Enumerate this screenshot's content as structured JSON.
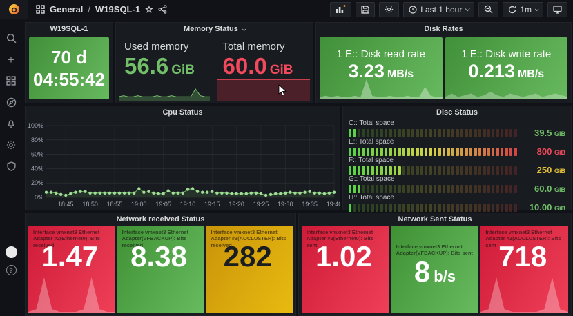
{
  "colors": {
    "green": "#56a64b",
    "red": "#e02f44",
    "orange": "#d9a70c",
    "green_text": "#73bf69",
    "red_text": "#f2495c",
    "yellow_text": "#e3c23a",
    "accent": "#ff8c1a"
  },
  "header": {
    "breadcrumb_section": "General",
    "breadcrumb_sep": "/",
    "breadcrumb_title": "W19SQL-1",
    "time_range_label": "Last 1 hour",
    "refresh_label": "1m"
  },
  "panels": {
    "uptime": {
      "title": "W19SQL-1",
      "days": "70 d",
      "time": "04:55:42"
    },
    "memory": {
      "title": "Memory Status",
      "used_label": "Used memory",
      "used_value": "56.6",
      "used_unit": "GiB",
      "total_label": "Total memory",
      "total_value": "60.0",
      "total_unit": "GiB",
      "used_spark": [
        3,
        4,
        3,
        3,
        4,
        3,
        3,
        3,
        4,
        3,
        3,
        4,
        3,
        3,
        3,
        3,
        10,
        4,
        3,
        3
      ]
    },
    "disk": {
      "title": "Disk Rates",
      "read_label": "1 E:: Disk read rate",
      "read_value": "3.23",
      "read_unit": "MB/s",
      "write_label": "1 E:: Disk write rate",
      "write_value": "0.213",
      "write_unit": "MB/s",
      "read_spark": [
        1,
        2,
        1,
        2,
        1,
        1,
        2,
        1,
        13,
        2,
        1,
        1,
        2,
        1,
        1,
        2,
        1,
        1,
        8,
        2,
        1,
        1
      ],
      "write_spark": [
        1,
        3,
        1,
        2,
        3,
        1,
        2,
        4,
        2,
        1,
        3,
        2,
        1,
        2,
        3,
        1,
        2,
        3,
        2,
        1
      ]
    },
    "cpu": {
      "title": "Cpu Status"
    },
    "disc": {
      "title": "Disc Status",
      "gauges": [
        {
          "label": "C:: Total space",
          "value": "39.5",
          "unit": "GiB",
          "color": "#73bf69",
          "lit": 2,
          "segments": 38
        },
        {
          "label": "E:: Total space",
          "value": "800",
          "unit": "GiB",
          "color": "#f2495c",
          "lit": 38,
          "segments": 38
        },
        {
          "label": "F:: Total space",
          "value": "250",
          "unit": "GiB",
          "color": "#e3c23a",
          "lit": 12,
          "segments": 38
        },
        {
          "label": "G:: Total space",
          "value": "60.0",
          "unit": "GiB",
          "color": "#73bf69",
          "lit": 3,
          "segments": 38
        },
        {
          "label": "H:: Total space",
          "value": "10.00",
          "unit": "GiB",
          "color": "#73bf69",
          "lit": 1,
          "segments": 38
        }
      ]
    },
    "net_recv": {
      "title": "Network received Status",
      "tiles": [
        {
          "label": "Interface vmxnet3 Ethernet Adapter #2(Ethernet0): Bits received",
          "value": "1.47",
          "unit": "",
          "color": "red",
          "spark": [
            0,
            1,
            13,
            1,
            0,
            0,
            0,
            1,
            13,
            1,
            0,
            0
          ]
        },
        {
          "label": "Interface vmxnet3 Ethernet Adapter(VFBACKUP): Bits received",
          "value": "8.38",
          "unit": "",
          "color": "green",
          "spark": []
        },
        {
          "label": "Interface vmxnet3 Ethernet Adapter #3(AOCLUSTER): Bits received",
          "value": "282",
          "unit": "",
          "color": "orange",
          "spark": []
        }
      ]
    },
    "net_sent": {
      "title": "Network Sent Status",
      "tiles": [
        {
          "label": "Interface vmxnet3 Ethernet Adapter #2(Ethernet0): Bits sent",
          "value": "1.02",
          "unit": "",
          "color": "red",
          "spark": []
        },
        {
          "label": "Interface vmxnet3 Ethernet Adapter(VFBACKUP): Bits sent",
          "value": "8",
          "unit": "b/s",
          "color": "green",
          "spark": []
        },
        {
          "label": "Interface vmxnet3 Ethernet Adapter #3(AOCLUSTER): Bits sent",
          "value": "718",
          "unit": "",
          "color": "red",
          "spark": [
            0,
            1,
            13,
            1,
            0,
            0,
            0,
            0,
            1,
            13,
            1,
            0
          ]
        }
      ]
    }
  },
  "chart_data": [
    {
      "type": "line",
      "title": "Cpu Status",
      "x_start": "18:41",
      "x_end": "19:40",
      "x_ticks": [
        "18:45",
        "18:50",
        "18:55",
        "19:00",
        "19:05",
        "19:10",
        "19:15",
        "19:20",
        "19:25",
        "19:30",
        "19:35",
        "19:40"
      ],
      "x_tick_indices": [
        4,
        9,
        14,
        19,
        24,
        29,
        34,
        39,
        44,
        49,
        54,
        59
      ],
      "values": [
        7,
        7,
        6,
        4,
        3,
        5,
        7,
        8,
        8,
        6,
        6,
        6,
        6,
        6,
        6,
        6,
        6,
        6,
        6,
        12,
        7,
        8,
        6,
        5,
        5,
        9,
        6,
        6,
        6,
        11,
        12,
        8,
        7,
        7,
        8,
        6,
        6,
        6,
        5,
        5,
        5,
        5,
        6,
        6,
        5,
        3,
        4,
        5,
        5,
        6,
        7,
        6,
        6,
        7,
        8,
        6,
        6,
        5,
        6,
        7
      ],
      "ylabel": "%",
      "ylim": [
        0,
        100
      ],
      "y_ticks": [
        "0%",
        "20%",
        "40%",
        "60%",
        "80%",
        "100%"
      ],
      "grid": true,
      "legend": false,
      "series_color": "#73bf69"
    },
    {
      "type": "bar",
      "title": "Disc Status",
      "categories": [
        "C:: Total space",
        "E:: Total space",
        "F:: Total space",
        "G:: Total space",
        "H:: Total space"
      ],
      "values_text": [
        "39.5 GiB",
        "800 GiB",
        "250 GiB",
        "60.0 GiB",
        "10.00 GiB"
      ],
      "gauge_fill_ratio": [
        0.05,
        1.0,
        0.32,
        0.08,
        0.03
      ],
      "xlabel": "",
      "ylabel": ""
    }
  ]
}
